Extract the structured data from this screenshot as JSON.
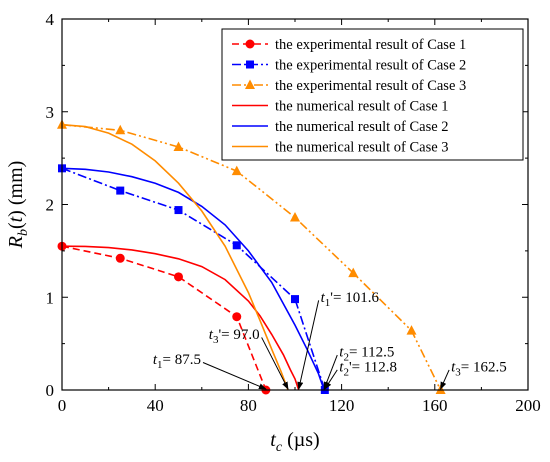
{
  "chart_data": {
    "type": "line",
    "xlabel": "t_c (µs)",
    "xlabel_parts": {
      "main": "t",
      "sub": "c",
      "unit": " (µs)"
    },
    "ylabel": "R_b(t) (mm)",
    "ylabel_parts": {
      "main": "R",
      "sub": "b",
      "rest": "(t) (mm)"
    },
    "xlim": [
      0,
      200
    ],
    "ylim": [
      0,
      4
    ],
    "xticks": [
      0,
      40,
      80,
      120,
      160,
      200
    ],
    "yticks": [
      0,
      1,
      2,
      3,
      4
    ],
    "grid": false,
    "legend_position": "top-right",
    "series": [
      {
        "name": "the experimental result of Case 1",
        "kind": "experimental",
        "color": "#ff0000",
        "marker": "circle",
        "dash": "dash",
        "x": [
          0,
          25,
          50,
          75,
          87.5
        ],
        "y": [
          1.55,
          1.42,
          1.22,
          0.79,
          0
        ]
      },
      {
        "name": "the experimental result of Case 2",
        "kind": "experimental",
        "color": "#0000ff",
        "marker": "square",
        "dash": "dashdot",
        "x": [
          0,
          25,
          50,
          75,
          100,
          112.8
        ],
        "y": [
          2.39,
          2.15,
          1.94,
          1.56,
          0.98,
          0
        ]
      },
      {
        "name": "the experimental result of Case 3",
        "kind": "experimental",
        "color": "#ff8c00",
        "marker": "triangle",
        "dash": "dashdotdot",
        "x": [
          0,
          25,
          50,
          75,
          100,
          125,
          150,
          162.5
        ],
        "y": [
          2.86,
          2.8,
          2.62,
          2.36,
          1.86,
          1.26,
          0.64,
          0
        ]
      },
      {
        "name": "the numerical result of Case 1",
        "kind": "numerical",
        "color": "#ff0000",
        "marker": "none",
        "dash": "solid",
        "x": [
          0,
          10,
          20,
          30,
          40,
          50,
          60,
          70,
          80,
          85,
          90,
          95,
          98,
          100,
          101.6
        ],
        "y": [
          1.55,
          1.548,
          1.535,
          1.51,
          1.47,
          1.415,
          1.33,
          1.19,
          0.96,
          0.8,
          0.6,
          0.38,
          0.22,
          0.12,
          0
        ]
      },
      {
        "name": "the numerical result of Case 2",
        "kind": "numerical",
        "color": "#0000ff",
        "marker": "none",
        "dash": "solid",
        "x": [
          0,
          10,
          20,
          30,
          40,
          50,
          60,
          70,
          80,
          90,
          100,
          105,
          110,
          112.5
        ],
        "y": [
          2.39,
          2.38,
          2.35,
          2.3,
          2.23,
          2.13,
          1.98,
          1.78,
          1.5,
          1.16,
          0.7,
          0.45,
          0.18,
          0
        ]
      },
      {
        "name": "the numerical result of Case 3",
        "kind": "numerical",
        "color": "#ff8c00",
        "marker": "none",
        "dash": "solid",
        "x": [
          0,
          10,
          20,
          30,
          40,
          50,
          60,
          70,
          80,
          85,
          90,
          94,
          97
        ],
        "y": [
          2.86,
          2.84,
          2.77,
          2.65,
          2.47,
          2.23,
          1.93,
          1.55,
          1.05,
          0.75,
          0.44,
          0.2,
          0
        ]
      }
    ],
    "annotations": [
      {
        "id": "t1p",
        "label": "t",
        "sub": "1",
        "suffix": "'= 101.6",
        "target": [
          101.6,
          0
        ],
        "text_pos": [
          111,
          0.95
        ]
      },
      {
        "id": "t3p",
        "label": "t",
        "sub": "3",
        "suffix": "'= 97.0",
        "target": [
          97.0,
          0
        ],
        "text_pos": [
          63,
          0.55
        ]
      },
      {
        "id": "t2",
        "label": "t",
        "sub": "2",
        "suffix": "= 112.5",
        "target": [
          112.5,
          0
        ],
        "text_pos": [
          119,
          0.36
        ]
      },
      {
        "id": "t2p",
        "label": "t",
        "sub": "2",
        "suffix": "'= 112.8",
        "target": [
          112.8,
          0
        ],
        "text_pos": [
          119,
          0.2
        ]
      },
      {
        "id": "t1",
        "label": "t",
        "sub": "1",
        "suffix": "= 87.5",
        "target": [
          87.5,
          0
        ],
        "text_pos": [
          39,
          0.28
        ]
      },
      {
        "id": "t3",
        "label": "t",
        "sub": "3",
        "suffix": "= 162.5",
        "target": [
          162.5,
          0
        ],
        "text_pos": [
          167,
          0.2
        ]
      }
    ]
  }
}
